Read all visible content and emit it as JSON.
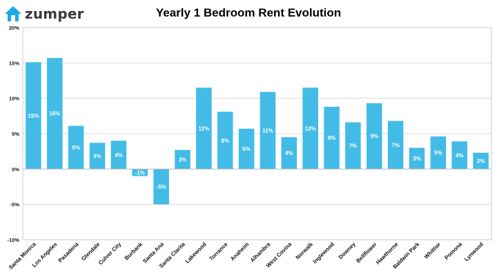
{
  "brand": {
    "logo_text": "zumper",
    "logo_icon": "house-icon",
    "accent": "#1aa7e8"
  },
  "chart_data": {
    "type": "bar",
    "title": "Yearly 1 Bedroom Rent Evolution",
    "xlabel": "",
    "ylabel": "",
    "ylim": [
      -10,
      20
    ],
    "yticks": [
      -10,
      -5,
      0,
      5,
      10,
      15,
      20
    ],
    "ytick_labels": [
      "-10%",
      "-5%",
      "0%",
      "5%",
      "10%",
      "15%",
      "20%"
    ],
    "grid": true,
    "legend": "none",
    "bar_color": "#42bce6",
    "categories": [
      "Santa Monica",
      "Los Angeles",
      "Pasadena",
      "Glendale",
      "Culver City",
      "Burbank",
      "Santa Ana",
      "Santa Clarita",
      "Lakewood",
      "Torrance",
      "Anaheim",
      "Alhambra",
      "West Covina",
      "Norwalk",
      "Inglewood",
      "Downey",
      "Bellflower",
      "Hawthorne",
      "Baldwin Park",
      "Whittier",
      "Pomona",
      "Lynwood"
    ],
    "values": [
      15.1,
      15.7,
      6.1,
      3.7,
      4.0,
      -1.0,
      -5.0,
      2.7,
      11.5,
      8.1,
      5.7,
      10.9,
      4.5,
      11.5,
      8.8,
      6.6,
      9.3,
      6.8,
      3.0,
      4.6,
      3.9,
      2.3
    ],
    "data_labels": [
      "15%",
      "16%",
      "6%",
      "4%",
      "4%",
      "-1%",
      "-5%",
      "3%",
      "12%",
      "8%",
      "6%",
      "11%",
      "4%",
      "12%",
      "9%",
      "7%",
      "9%",
      "7%",
      "3%",
      "5%",
      "4%",
      "2%"
    ]
  }
}
